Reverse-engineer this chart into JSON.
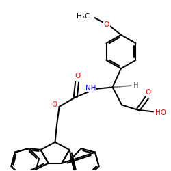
{
  "bg_color": "#ffffff",
  "bond_color": "#000000",
  "oxygen_color": "#ff0000",
  "nitrogen_color": "#0000ff",
  "gray_color": "#808080",
  "lw": 1.5,
  "fig_w": 2.5,
  "fig_h": 2.5,
  "dpi": 100,
  "xlim": [
    0,
    10
  ],
  "ylim": [
    0,
    10
  ]
}
